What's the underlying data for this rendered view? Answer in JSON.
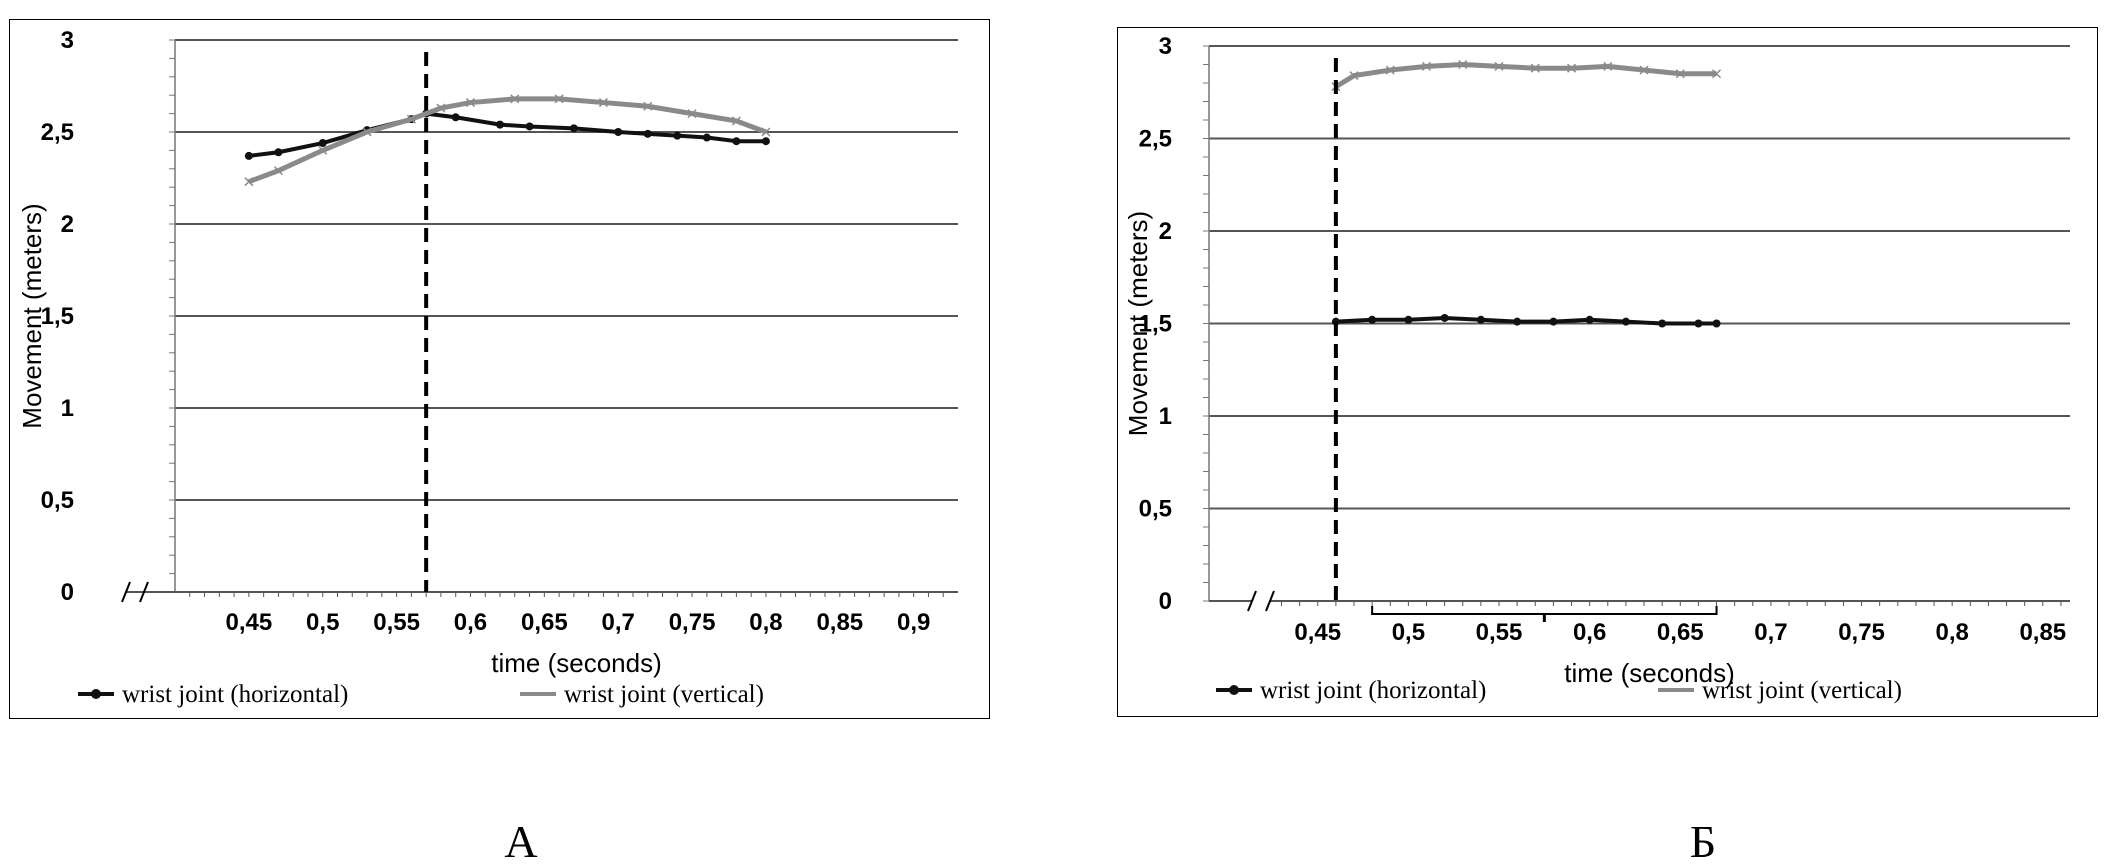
{
  "colors": {
    "horizontal_series": "#111111",
    "vertical_series": "#8a8a8a",
    "gridline": "#555555",
    "marker_line": "#000000"
  },
  "panels": [
    {
      "letter": "A"
    },
    {
      "letter": "Б"
    }
  ],
  "chart_data": [
    {
      "type": "line",
      "panel": "A",
      "xlabel": "time (seconds)",
      "ylabel": "Movement (meters)",
      "xlim": [
        0.4,
        0.93
      ],
      "ylim": [
        0,
        3
      ],
      "x_ticks": [
        0.45,
        0.5,
        0.55,
        0.6,
        0.65,
        0.7,
        0.75,
        0.8,
        0.85,
        0.9
      ],
      "x_tick_labels": [
        "0,45",
        "0,5",
        "0,55",
        "0,6",
        "0,65",
        "0,7",
        "0,75",
        "0,8",
        "0,85",
        "0,9"
      ],
      "y_ticks": [
        0,
        0.5,
        1,
        1.5,
        2,
        2.5,
        3
      ],
      "y_tick_labels": [
        "0",
        "0,5",
        "1",
        "1,5",
        "2",
        "2,5",
        "3"
      ],
      "grid": "horizontal",
      "axis_break": true,
      "marker_line_x": 0.57,
      "bracket": null,
      "legend_position": "bottom",
      "series": [
        {
          "name": "wrist joint (horizontal)",
          "x": [
            0.45,
            0.47,
            0.5,
            0.53,
            0.56,
            0.57,
            0.59,
            0.62,
            0.64,
            0.67,
            0.7,
            0.72,
            0.74,
            0.76,
            0.78,
            0.8
          ],
          "y": [
            2.37,
            2.39,
            2.44,
            2.51,
            2.57,
            2.6,
            2.58,
            2.54,
            2.53,
            2.52,
            2.5,
            2.49,
            2.48,
            2.47,
            2.45,
            2.45
          ]
        },
        {
          "name": "wrist joint (vertical)",
          "x": [
            0.45,
            0.47,
            0.5,
            0.53,
            0.56,
            0.58,
            0.6,
            0.63,
            0.66,
            0.69,
            0.72,
            0.75,
            0.78,
            0.8
          ],
          "y": [
            2.23,
            2.29,
            2.4,
            2.5,
            2.57,
            2.63,
            2.66,
            2.68,
            2.68,
            2.66,
            2.64,
            2.6,
            2.56,
            2.5
          ]
        }
      ]
    },
    {
      "type": "line",
      "panel": "Б",
      "xlabel": "time (seconds)",
      "ylabel": "Movement (meters)",
      "xlim": [
        0.39,
        0.865
      ],
      "ylim": [
        0,
        3
      ],
      "x_ticks": [
        0.45,
        0.5,
        0.55,
        0.6,
        0.65,
        0.7,
        0.75,
        0.8,
        0.85
      ],
      "x_tick_labels": [
        "0,45",
        "0,5",
        "0,55",
        "0,6",
        "0,65",
        "0,7",
        "0,75",
        "0,8",
        "0,85"
      ],
      "y_ticks": [
        0,
        0.5,
        1,
        1.5,
        2,
        2.5,
        3
      ],
      "y_tick_labels": [
        "0",
        "0,5",
        "1",
        "1,5",
        "2",
        "2,5",
        "3"
      ],
      "grid": "horizontal",
      "axis_break": true,
      "marker_line_x": 0.46,
      "bracket": [
        0.48,
        0.67
      ],
      "legend_position": "bottom",
      "series": [
        {
          "name": "wrist joint (horizontal)",
          "x": [
            0.46,
            0.48,
            0.5,
            0.52,
            0.54,
            0.56,
            0.58,
            0.6,
            0.62,
            0.64,
            0.66,
            0.67
          ],
          "y": [
            1.51,
            1.52,
            1.52,
            1.53,
            1.52,
            1.51,
            1.51,
            1.52,
            1.51,
            1.5,
            1.5,
            1.5
          ]
        },
        {
          "name": "wrist joint (vertical)",
          "x": [
            0.46,
            0.47,
            0.49,
            0.51,
            0.53,
            0.55,
            0.57,
            0.59,
            0.61,
            0.63,
            0.65,
            0.67
          ],
          "y": [
            2.78,
            2.84,
            2.87,
            2.89,
            2.9,
            2.89,
            2.88,
            2.88,
            2.89,
            2.87,
            2.85,
            2.85
          ]
        }
      ]
    }
  ]
}
